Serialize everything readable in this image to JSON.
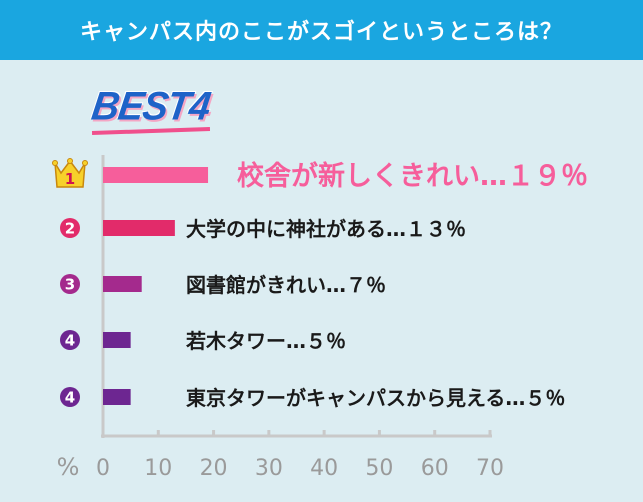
{
  "header": {
    "title": "キャンパス内のここがスゴイというところは？"
  },
  "badge": {
    "text": "BEST4"
  },
  "chart_data": {
    "type": "bar",
    "orientation": "horizontal",
    "xlabel": "%",
    "xlim": [
      0,
      70
    ],
    "xticks": [
      "0",
      "10",
      "20",
      "30",
      "40",
      "50",
      "60",
      "70"
    ],
    "items": [
      {
        "rank": "1",
        "label": "校舎が新しくきれい…１９％",
        "value": 19,
        "color": "#f65e9b",
        "text_color": "#f65e9b",
        "badge": "crown"
      },
      {
        "rank": "2",
        "label": "大学の中に神社がある…１３％",
        "value": 13,
        "color": "#e22b6a",
        "text_color": "#1a1a1a",
        "badge": "circle",
        "badge_color": "#e22b6a"
      },
      {
        "rank": "3",
        "label": "図書館がきれい…７％",
        "value": 7,
        "color": "#a42a8d",
        "text_color": "#1a1a1a",
        "badge": "circle",
        "badge_color": "#a42a8d"
      },
      {
        "rank": "4",
        "label": "若木タワー…５％",
        "value": 5,
        "color": "#6d2691",
        "text_color": "#1a1a1a",
        "badge": "circle",
        "badge_color": "#6d2691"
      },
      {
        "rank": "4",
        "label": "東京タワーがキャンパスから見える…５％",
        "value": 5,
        "color": "#6d2691",
        "text_color": "#1a1a1a",
        "badge": "circle",
        "badge_color": "#6d2691"
      }
    ]
  }
}
